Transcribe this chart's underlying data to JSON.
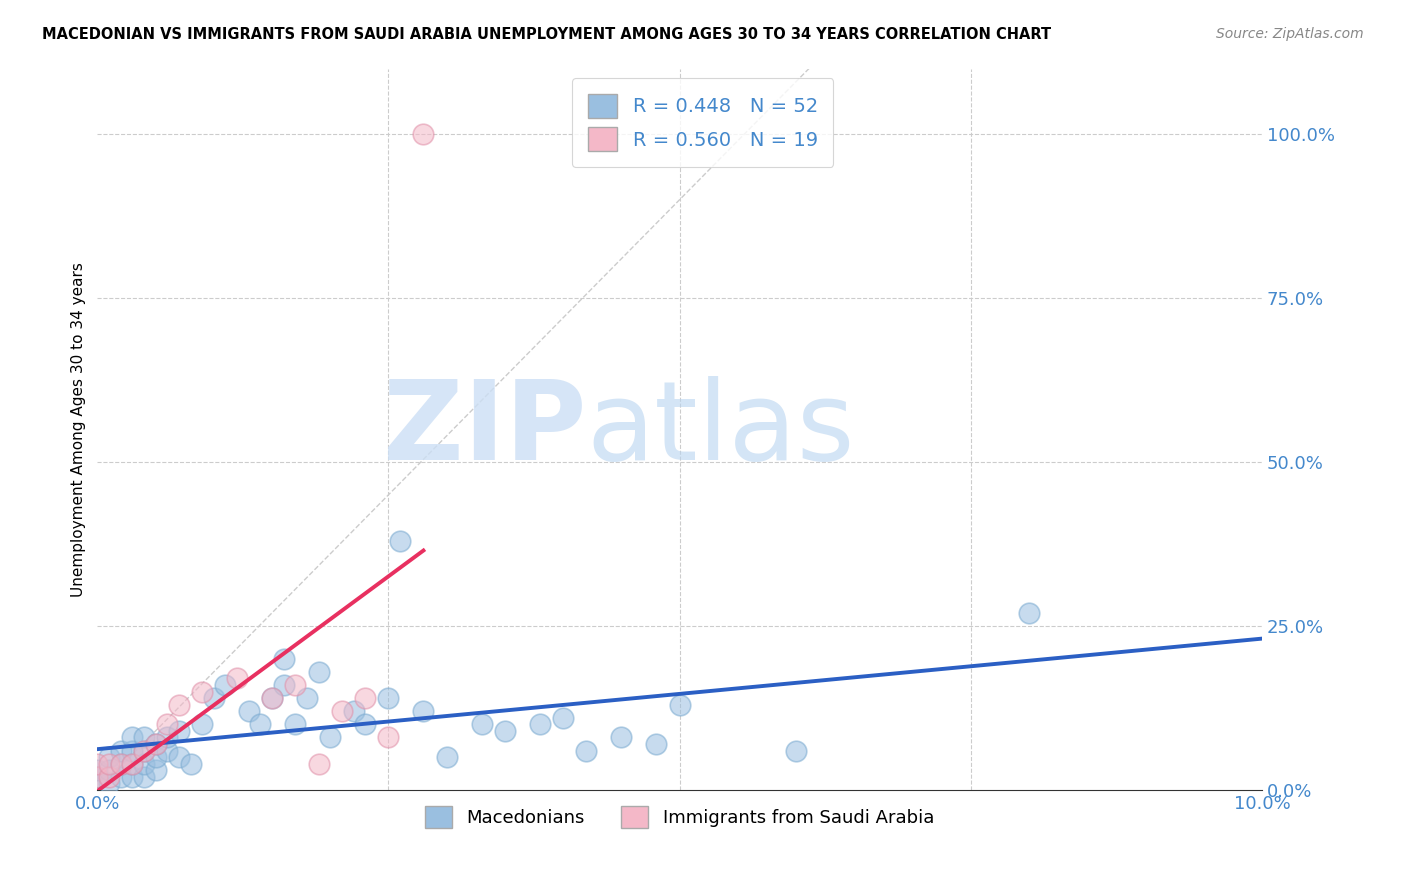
{
  "title": "MACEDONIAN VS IMMIGRANTS FROM SAUDI ARABIA UNEMPLOYMENT AMONG AGES 30 TO 34 YEARS CORRELATION CHART",
  "source": "Source: ZipAtlas.com",
  "ylabel": "Unemployment Among Ages 30 to 34 years",
  "xlim": [
    0.0,
    0.1
  ],
  "ylim": [
    0.0,
    1.1
  ],
  "right_yticks": [
    0.0,
    0.25,
    0.5,
    0.75,
    1.0
  ],
  "right_yticklabels": [
    "0.0%",
    "25.0%",
    "50.0%",
    "75.0%",
    "100.0%"
  ],
  "macedonian_R": 0.448,
  "macedonian_N": 52,
  "saudi_R": 0.56,
  "saudi_N": 19,
  "macedonian_color": "#9abfe0",
  "macedonian_edge_color": "#7aaad0",
  "macedonian_line_color": "#2b5fc4",
  "saudi_color": "#f4b8c8",
  "saudi_edge_color": "#e090a8",
  "saudi_line_color": "#e83060",
  "watermark_zip": "ZIP",
  "watermark_atlas": "atlas",
  "macedonian_x": [
    0.0,
    0.0,
    0.001,
    0.001,
    0.001,
    0.002,
    0.002,
    0.002,
    0.003,
    0.003,
    0.003,
    0.003,
    0.004,
    0.004,
    0.004,
    0.004,
    0.005,
    0.005,
    0.005,
    0.006,
    0.006,
    0.007,
    0.007,
    0.008,
    0.009,
    0.01,
    0.011,
    0.013,
    0.014,
    0.015,
    0.016,
    0.016,
    0.017,
    0.018,
    0.019,
    0.02,
    0.022,
    0.023,
    0.025,
    0.026,
    0.028,
    0.03,
    0.033,
    0.035,
    0.038,
    0.04,
    0.042,
    0.045,
    0.048,
    0.05,
    0.06,
    0.08
  ],
  "macedonian_y": [
    0.02,
    0.03,
    0.01,
    0.03,
    0.05,
    0.02,
    0.04,
    0.06,
    0.02,
    0.04,
    0.06,
    0.08,
    0.02,
    0.04,
    0.06,
    0.08,
    0.03,
    0.05,
    0.07,
    0.06,
    0.08,
    0.05,
    0.09,
    0.04,
    0.1,
    0.14,
    0.16,
    0.12,
    0.1,
    0.14,
    0.16,
    0.2,
    0.1,
    0.14,
    0.18,
    0.08,
    0.12,
    0.1,
    0.14,
    0.38,
    0.12,
    0.05,
    0.1,
    0.09,
    0.1,
    0.11,
    0.06,
    0.08,
    0.07,
    0.13,
    0.06,
    0.27
  ],
  "saudi_x": [
    0.0,
    0.0,
    0.001,
    0.001,
    0.002,
    0.003,
    0.004,
    0.005,
    0.006,
    0.007,
    0.009,
    0.012,
    0.015,
    0.017,
    0.019,
    0.021,
    0.023,
    0.025,
    0.028
  ],
  "saudi_y": [
    0.02,
    0.04,
    0.02,
    0.04,
    0.04,
    0.04,
    0.06,
    0.07,
    0.1,
    0.13,
    0.15,
    0.17,
    0.14,
    0.16,
    0.04,
    0.12,
    0.14,
    0.08,
    1.0
  ]
}
